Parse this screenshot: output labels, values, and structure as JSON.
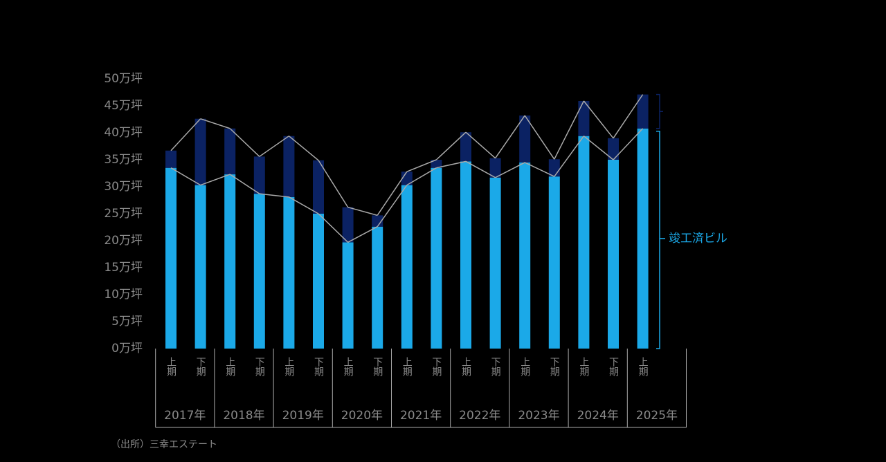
{
  "chart_data": {
    "type": "stacked-bar",
    "categories": [
      "上期",
      "下期",
      "上期",
      "下期",
      "上期",
      "下期",
      "上期",
      "下期",
      "上期",
      "下期",
      "上期",
      "下期",
      "上期",
      "下期",
      "上期",
      "下期",
      "上期"
    ],
    "category_groups": [
      "2017年",
      "2018年",
      "2019年",
      "2020年",
      "2021年",
      "2022年",
      "2023年",
      "2024年",
      "2025年"
    ],
    "series": [
      {
        "name": "竣工済ビル",
        "color": "#1ba9e8",
        "values": [
          33.5,
          30.3,
          32.3,
          28.7,
          28.1,
          25.0,
          19.7,
          22.6,
          30.3,
          33.5,
          34.7,
          31.7,
          34.5,
          31.9,
          39.4,
          35.0,
          40.8
        ]
      },
      {
        "color": "#0b2263",
        "values": [
          3.2,
          12.3,
          8.5,
          6.9,
          11.3,
          9.9,
          6.5,
          2.1,
          2.5,
          1.5,
          5.4,
          3.6,
          8.7,
          3.2,
          6.5,
          4.0,
          6.3
        ]
      }
    ],
    "ylim": [
      0,
      50
    ],
    "yticks": [
      {
        "value": 0,
        "label": "0万坪"
      },
      {
        "value": 5,
        "label": "5万坪"
      },
      {
        "value": 10,
        "label": "10万坪"
      },
      {
        "value": 15,
        "label": "15万坪"
      },
      {
        "value": 20,
        "label": "20万坪"
      },
      {
        "value": 25,
        "label": "25万坪"
      },
      {
        "value": 30,
        "label": "30万坪"
      },
      {
        "value": 35,
        "label": "35万坪"
      },
      {
        "value": 40,
        "label": "40万坪"
      },
      {
        "value": 45,
        "label": "45万坪"
      },
      {
        "value": 50,
        "label": "50万坪"
      }
    ],
    "source": "（出所）三幸エステート"
  }
}
